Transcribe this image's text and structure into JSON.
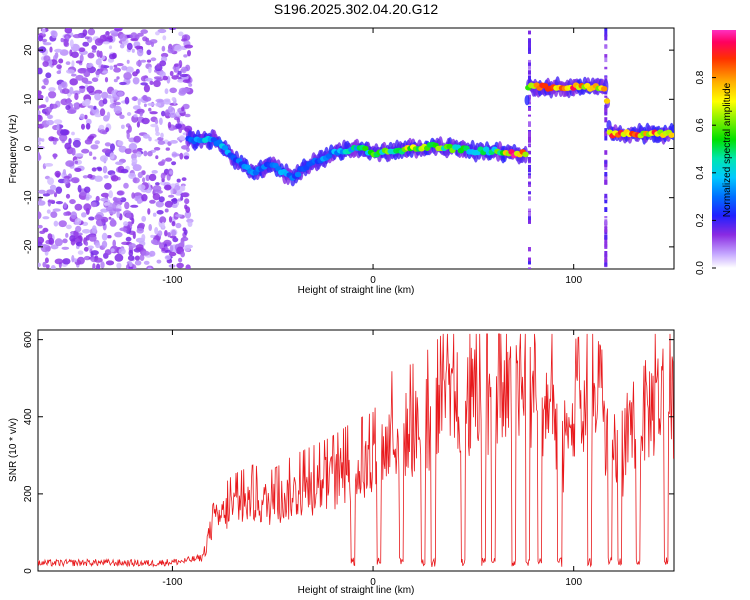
{
  "title": "S196.2025.302.04.20.G12",
  "chart_data": [
    {
      "type": "heatmap",
      "name": "spectrogram",
      "xlabel": "Height of straight line (km)",
      "ylabel": "Frequency (Hz)",
      "xlim": [
        -167,
        150
      ],
      "ylim": [
        -24.5,
        24.5
      ],
      "xticks": [
        -100,
        0,
        100
      ],
      "yticks": [
        -20,
        -10,
        0,
        10,
        20
      ],
      "colorbar": {
        "label": "Normalized spectral amplitude",
        "range": [
          0,
          1
        ],
        "ticks": [
          "0.0",
          "0.2",
          "0.4",
          "0.6",
          "0.8"
        ],
        "tick_values": [
          0,
          0.2,
          0.4,
          0.6,
          0.8
        ]
      },
      "noise_region": {
        "x_from": -167,
        "x_to": -91,
        "description_value": "scattered low amplitude"
      },
      "ridge": {
        "x": [
          -92,
          -85,
          -80,
          -75,
          -70,
          -65,
          -60,
          -55,
          -50,
          -45,
          -40,
          -35,
          -30,
          -25,
          -20,
          -15,
          -10,
          -5,
          0,
          10,
          20,
          30,
          40,
          50,
          60,
          70,
          76,
          77,
          80,
          90,
          100,
          110,
          116,
          118,
          125,
          135,
          145,
          150
        ],
        "freq_hz": [
          2,
          1.5,
          2,
          0.5,
          -2,
          -3,
          -5,
          -4,
          -3,
          -5,
          -6,
          -4,
          -3,
          -2,
          -1,
          -0.5,
          0,
          0,
          -1,
          -0.5,
          0,
          0.5,
          0,
          -0.5,
          -0.5,
          -1,
          -1,
          12.5,
          12.5,
          12.5,
          12.5,
          12.5,
          12.5,
          3,
          3,
          3,
          3,
          3
        ],
        "amplitude": [
          0.3,
          0.4,
          0.35,
          0.4,
          0.3,
          0.3,
          0.35,
          0.3,
          0.3,
          0.35,
          0.3,
          0.3,
          0.3,
          0.35,
          0.35,
          0.4,
          0.45,
          0.5,
          0.55,
          0.6,
          0.75,
          0.6,
          0.6,
          0.5,
          0.5,
          0.95,
          0.9,
          0.8,
          0.85,
          0.8,
          0.9,
          0.8,
          0.75,
          0.9,
          0.95,
          0.8,
          0.9,
          0.85
        ]
      },
      "vertical_smears_x": [
        78,
        116
      ]
    },
    {
      "type": "line",
      "name": "snr",
      "xlabel": "Height of straight line (km)",
      "ylabel": "SNR (10 * v/v)",
      "xlim": [
        -167,
        150
      ],
      "ylim": [
        0,
        625
      ],
      "xticks": [
        -100,
        0,
        100
      ],
      "yticks": [
        0,
        200,
        400,
        600
      ],
      "color": "#e8191c",
      "x": [
        -167,
        -140,
        -110,
        -95,
        -85,
        -82,
        -78,
        -70,
        -60,
        -50,
        -40,
        -30,
        -20,
        -10,
        0,
        10,
        20,
        30,
        40,
        50,
        60,
        70,
        80,
        90,
        95,
        100,
        110,
        120,
        125,
        130,
        140,
        145,
        150
      ],
      "y": [
        20,
        22,
        20,
        25,
        35,
        110,
        160,
        200,
        220,
        210,
        240,
        260,
        280,
        310,
        330,
        420,
        430,
        470,
        520,
        530,
        510,
        540,
        550,
        520,
        340,
        480,
        500,
        400,
        320,
        470,
        520,
        560,
        500
      ],
      "dropouts_x": [
        -10,
        3,
        14,
        25,
        30,
        45,
        55,
        60,
        70,
        77,
        83,
        93,
        108,
        118,
        123,
        132,
        146
      ]
    }
  ]
}
